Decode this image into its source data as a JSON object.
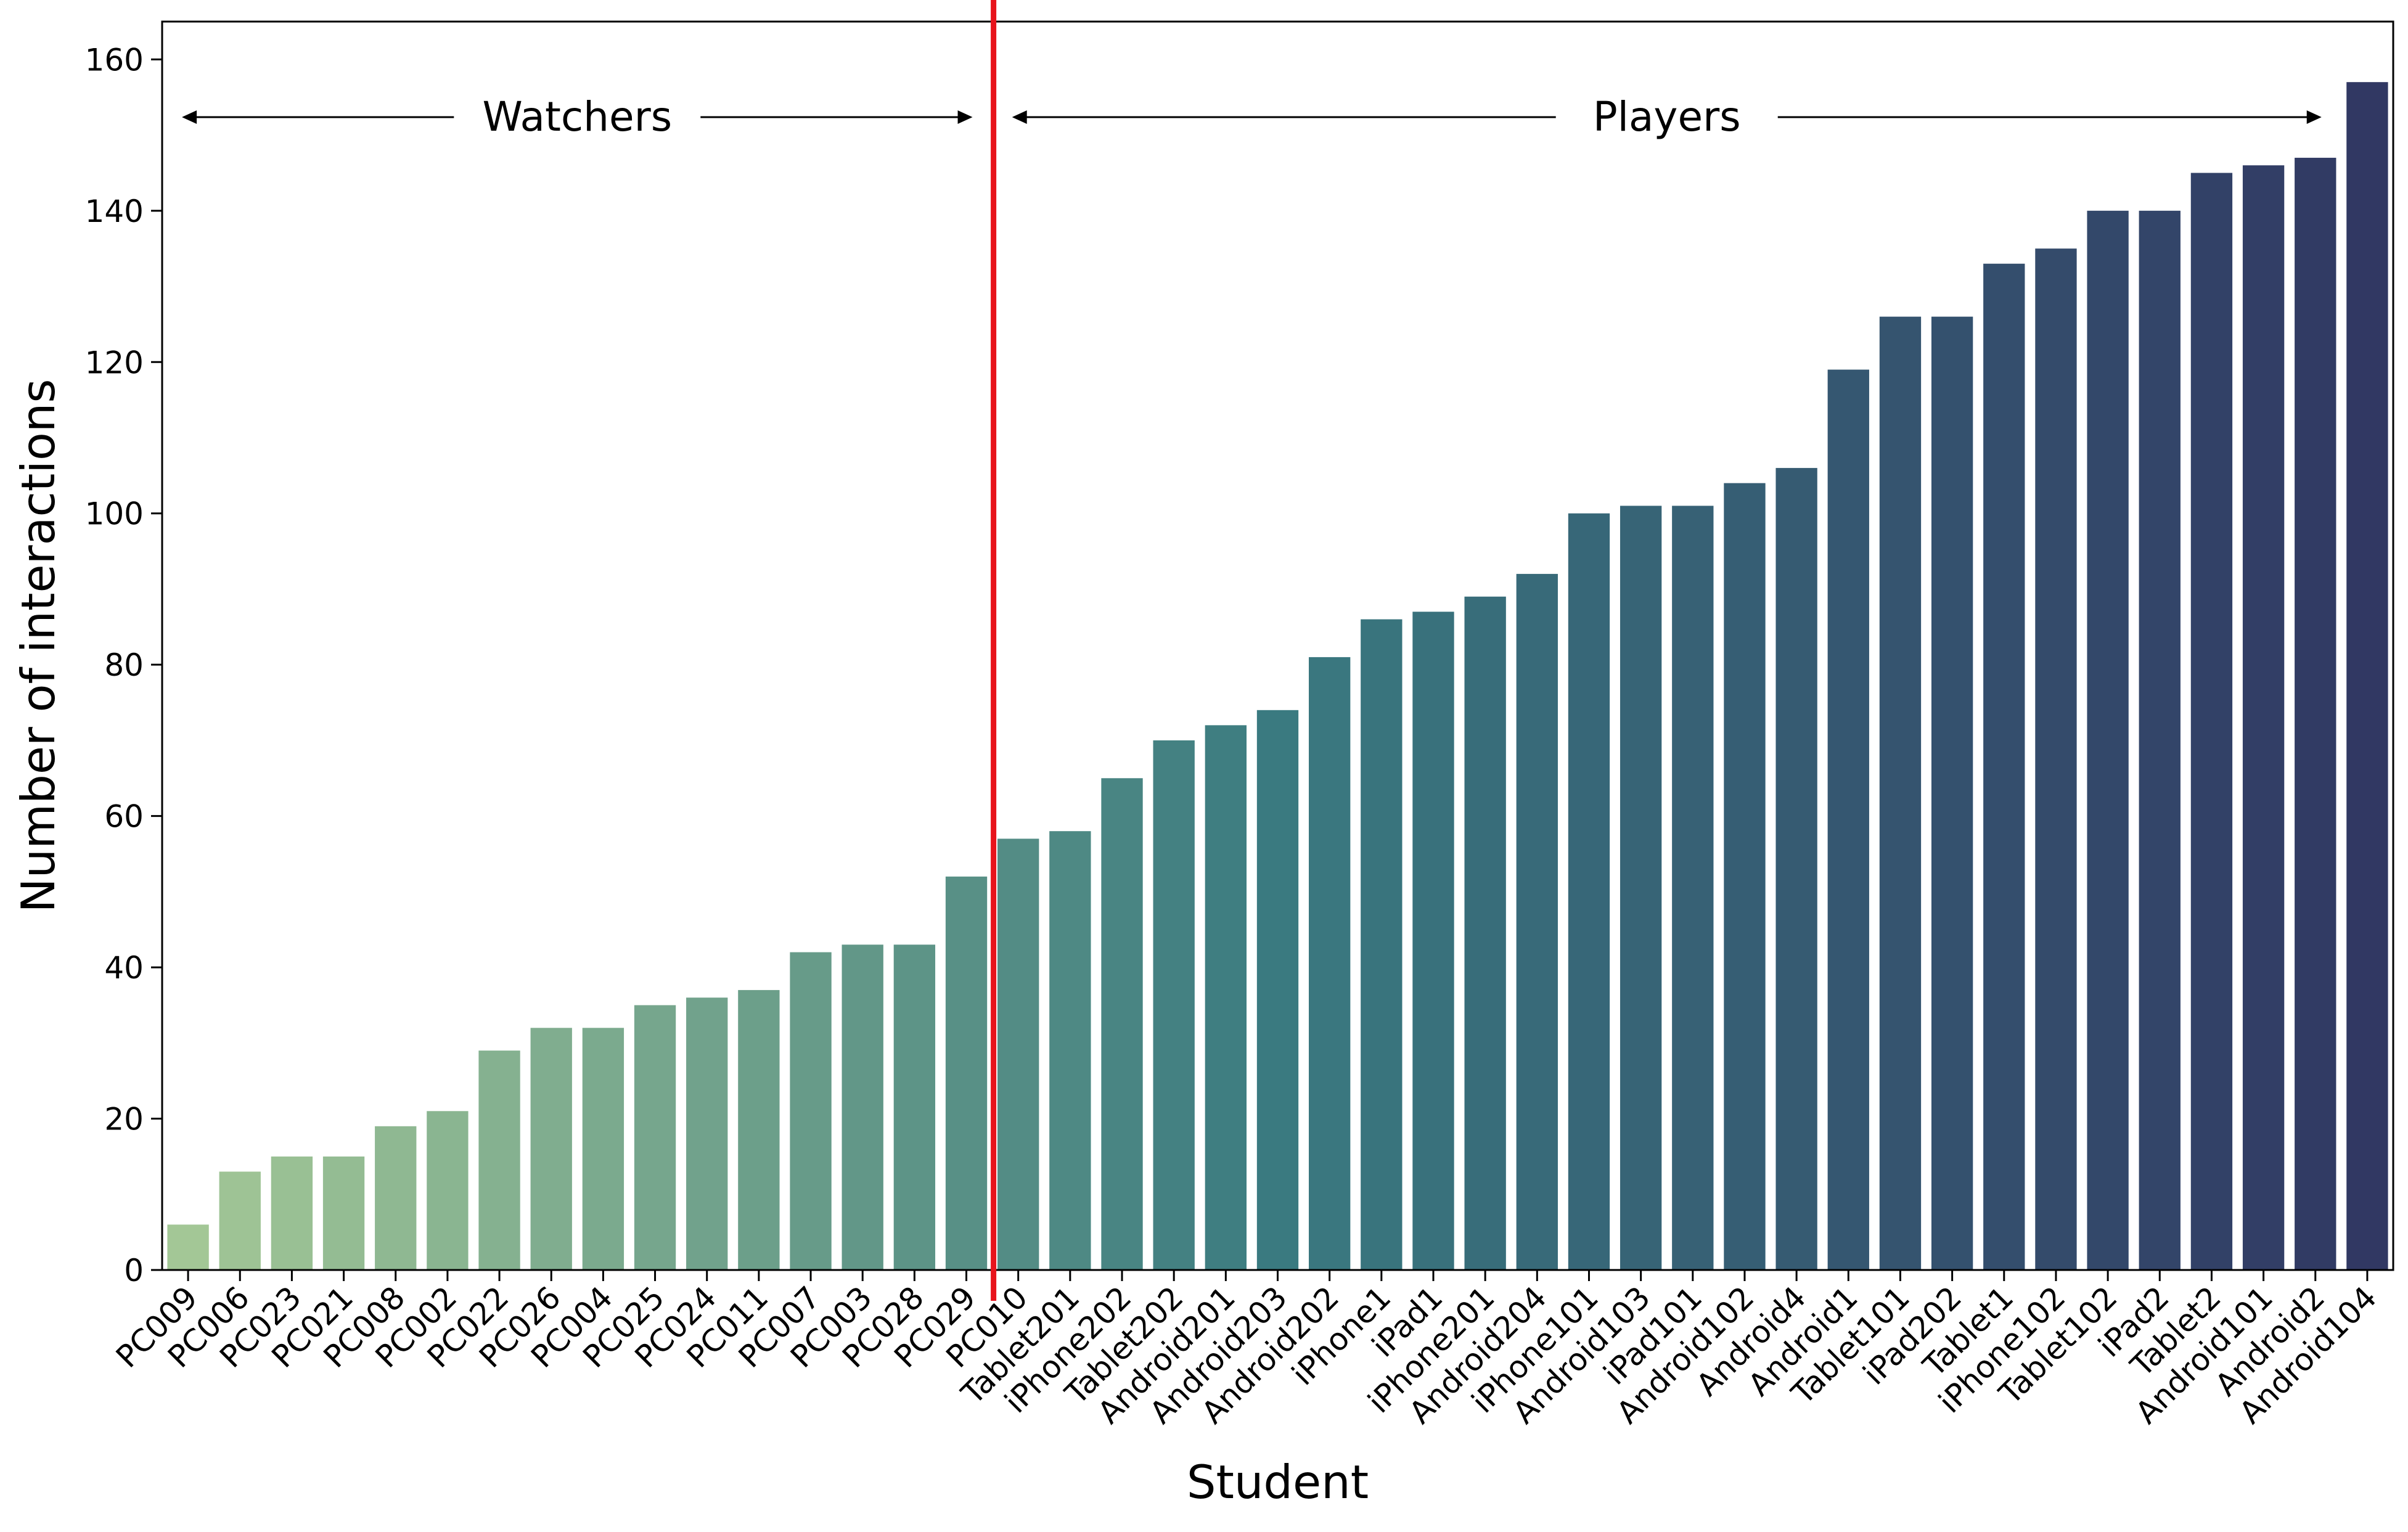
{
  "chart_data": {
    "type": "bar",
    "xlabel": "Student",
    "ylabel": "Number of interactions",
    "ylim": [
      0,
      165
    ],
    "yticks": [
      0,
      20,
      40,
      60,
      80,
      100,
      120,
      140,
      160
    ],
    "grid": false,
    "color_start": "#a3c796",
    "color_end": "#313863",
    "divider": {
      "after_category": "PC029",
      "color": "#e8141c"
    },
    "annotations": [
      {
        "text": "Watchers",
        "from": "PC009",
        "to": "PC029"
      },
      {
        "text": "Players",
        "from": "PC010",
        "to": "Android2"
      }
    ],
    "categories": [
      "PC009",
      "PC006",
      "PC023",
      "PC021",
      "PC008",
      "PC002",
      "PC022",
      "PC026",
      "PC004",
      "PC025",
      "PC024",
      "PC011",
      "PC007",
      "PC003",
      "PC028",
      "PC029",
      "PC010",
      "Tablet201",
      "iPhone202",
      "Tablet202",
      "Android201",
      "Android203",
      "Android202",
      "iPhone1",
      "iPad1",
      "iPhone201",
      "Android204",
      "iPhone101",
      "Android103",
      "iPad101",
      "Android102",
      "Android4",
      "Android1",
      "Tablet101",
      "iPad202",
      "Tablet1",
      "iPhone102",
      "Tablet102",
      "iPad2",
      "Tablet2",
      "Android101",
      "Android2",
      "Android104"
    ],
    "values": [
      6,
      13,
      15,
      15,
      19,
      21,
      29,
      32,
      32,
      35,
      36,
      37,
      42,
      43,
      43,
      52,
      57,
      58,
      65,
      70,
      72,
      74,
      81,
      86,
      87,
      89,
      92,
      100,
      101,
      101,
      104,
      106,
      119,
      126,
      126,
      133,
      135,
      140,
      140,
      145,
      146,
      147,
      157
    ]
  }
}
